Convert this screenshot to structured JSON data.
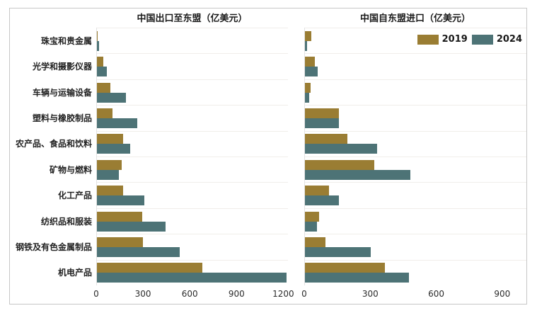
{
  "figure": {
    "background": "#ffffff",
    "border_color": "#c6c6c6",
    "gridline_color": "#f0eeea"
  },
  "legend": {
    "position": "top-right-of-import-panel",
    "items": [
      {
        "label": "2019",
        "color": "#9a7d33"
      },
      {
        "label": "2024",
        "color": "#4d7376"
      }
    ]
  },
  "chart_data": [
    {
      "type": "bar",
      "orientation": "horizontal",
      "title": "中国出口至东盟（亿美元）",
      "categories": [
        "珠宝和贵金属",
        "光学和摄影仪器",
        "车辆与运输设备",
        "塑料与橡胶制品",
        "农产品、食品和饮料",
        "矿物与燃料",
        "化工产品",
        "纺织品和服装",
        "钢铁及有色金属制品",
        "机电产品"
      ],
      "series": [
        {
          "name": "2019",
          "color": "#9a7d33",
          "values": [
            5,
            40,
            85,
            100,
            170,
            160,
            170,
            290,
            295,
            680
          ]
        },
        {
          "name": "2024",
          "color": "#4d7376",
          "values": [
            15,
            65,
            185,
            260,
            215,
            140,
            305,
            440,
            535,
            1220
          ]
        }
      ],
      "xlim": [
        0,
        1230
      ],
      "xticks": [
        0,
        300,
        600,
        900,
        1200
      ],
      "grid": "horizontal-faint",
      "unit": "亿美元"
    },
    {
      "type": "bar",
      "orientation": "horizontal",
      "title": "中国自东盟进口（亿美元）",
      "categories": [
        "珠宝和贵金属",
        "光学和摄影仪器",
        "车辆与运输设备",
        "塑料与橡胶制品",
        "农产品、食品和饮料",
        "矿物与燃料",
        "化工产品",
        "纺织品和服装",
        "钢铁及有色金属制品",
        "机电产品"
      ],
      "series": [
        {
          "name": "2019",
          "color": "#9a7d33",
          "values": [
            30,
            45,
            25,
            155,
            195,
            315,
            110,
            65,
            95,
            365
          ]
        },
        {
          "name": "2024",
          "color": "#4d7376",
          "values": [
            10,
            57,
            18,
            155,
            330,
            480,
            155,
            55,
            300,
            475
          ]
        }
      ],
      "xlim": [
        0,
        1010
      ],
      "xticks": [
        0,
        300,
        600,
        900
      ],
      "grid": "horizontal-faint",
      "unit": "亿美元"
    }
  ]
}
